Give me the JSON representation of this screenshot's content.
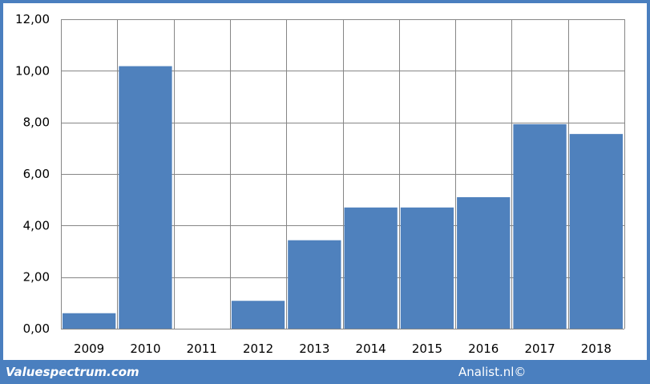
{
  "chart_data": {
    "type": "bar",
    "categories": [
      "2009",
      "2010",
      "2011",
      "2012",
      "2013",
      "2014",
      "2015",
      "2016",
      "2017",
      "2018"
    ],
    "values": [
      0.6,
      10.18,
      0,
      1.08,
      3.43,
      4.7,
      4.7,
      5.1,
      7.93,
      7.55
    ],
    "ylim": [
      0,
      12
    ],
    "yticks": [
      0,
      2,
      4,
      6,
      8,
      10,
      12
    ],
    "ytick_labels": [
      "0,00",
      "2,00",
      "4,00",
      "6,00",
      "8,00",
      "10,00",
      "12,00"
    ],
    "grid": true,
    "colors": {
      "bar": "#4f81bd",
      "grid": "#868686",
      "frame": "#4a7fbf"
    }
  },
  "footer": {
    "left": "Valuespectrum.com",
    "right": "Analist.nl©"
  }
}
